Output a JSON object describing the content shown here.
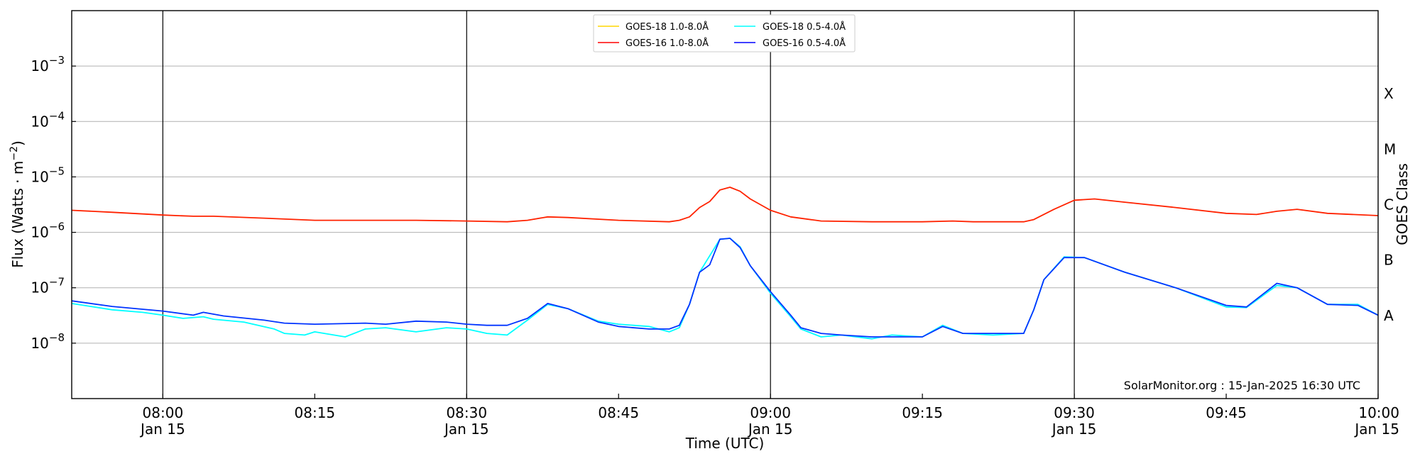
{
  "chart_data": {
    "type": "line",
    "xlabel": "Time (UTC)",
    "ylabel_main": "Flux (Watts · m",
    "ylabel_sup": "−2",
    "ylabel_close": ")",
    "y2label": "GOES Class",
    "y_scale": "log",
    "ylim": [
      1e-09,
      0.01
    ],
    "xlim": [
      "07:51",
      "10:00"
    ],
    "x_ticks": [
      {
        "t": "08:00",
        "line1": "08:00",
        "line2": "Jan 15"
      },
      {
        "t": "08:15",
        "line1": "08:15",
        "line2": ""
      },
      {
        "t": "08:30",
        "line1": "08:30",
        "line2": "Jan 15"
      },
      {
        "t": "08:45",
        "line1": "08:45",
        "line2": ""
      },
      {
        "t": "09:00",
        "line1": "09:00",
        "line2": "Jan 15"
      },
      {
        "t": "09:15",
        "line1": "09:15",
        "line2": ""
      },
      {
        "t": "09:30",
        "line1": "09:30",
        "line2": "Jan 15"
      },
      {
        "t": "09:45",
        "line1": "09:45",
        "line2": ""
      },
      {
        "t": "10:00",
        "line1": "10:00",
        "line2": "Jan 15"
      }
    ],
    "y_ticks": [
      {
        "v": 0.001,
        "base": "10",
        "exp": "−3"
      },
      {
        "v": 0.0001,
        "base": "10",
        "exp": "−4"
      },
      {
        "v": 1e-05,
        "base": "10",
        "exp": "−5"
      },
      {
        "v": 1e-06,
        "base": "10",
        "exp": "−6"
      },
      {
        "v": 1e-07,
        "base": "10",
        "exp": "−7"
      },
      {
        "v": 1e-08,
        "base": "10",
        "exp": "−8"
      }
    ],
    "goes_classes": [
      {
        "label": "X",
        "v": 0.0001
      },
      {
        "label": "M",
        "v": 1e-05
      },
      {
        "label": "C",
        "v": 1e-06
      },
      {
        "label": "B",
        "v": 1e-07
      },
      {
        "label": "A",
        "v": 1e-08
      }
    ],
    "vertical_lines": [
      "08:00",
      "08:30",
      "09:00",
      "09:30"
    ],
    "grid": "horizontal",
    "legend_position": "top-center",
    "legend": [
      {
        "name": "GOES-18 1.0-8.0Å",
        "color": "#ffd700"
      },
      {
        "name": "GOES-18 0.5-4.0Å",
        "color": "#00ffff"
      },
      {
        "name": "GOES-16 1.0-8.0Å",
        "color": "#ff0000"
      },
      {
        "name": "GOES-16 0.5-4.0Å",
        "color": "#0000ff"
      }
    ],
    "annotation": "SolarMonitor.org : 15-Jan-2025 16:30 UTC",
    "series": [
      {
        "name": "GOES-16 1.0-8.0Å",
        "color": "#ff2200",
        "points": [
          [
            "07:51",
            2.5e-06
          ],
          [
            "07:55",
            2.3e-06
          ],
          [
            "08:00",
            2.05e-06
          ],
          [
            "08:03",
            1.95e-06
          ],
          [
            "08:05",
            1.95e-06
          ],
          [
            "08:10",
            1.8e-06
          ],
          [
            "08:15",
            1.65e-06
          ],
          [
            "08:20",
            1.65e-06
          ],
          [
            "08:25",
            1.65e-06
          ],
          [
            "08:30",
            1.6e-06
          ],
          [
            "08:34",
            1.55e-06
          ],
          [
            "08:36",
            1.65e-06
          ],
          [
            "08:38",
            1.9e-06
          ],
          [
            "08:40",
            1.85e-06
          ],
          [
            "08:45",
            1.65e-06
          ],
          [
            "08:50",
            1.55e-06
          ],
          [
            "08:51",
            1.65e-06
          ],
          [
            "08:52",
            1.9e-06
          ],
          [
            "08:53",
            2.8e-06
          ],
          [
            "08:54",
            3.6e-06
          ],
          [
            "08:55",
            5.8e-06
          ],
          [
            "08:56",
            6.5e-06
          ],
          [
            "08:57",
            5.5e-06
          ],
          [
            "08:58",
            4e-06
          ],
          [
            "09:00",
            2.5e-06
          ],
          [
            "09:02",
            1.9e-06
          ],
          [
            "09:05",
            1.6e-06
          ],
          [
            "09:10",
            1.55e-06
          ],
          [
            "09:15",
            1.55e-06
          ],
          [
            "09:18",
            1.6e-06
          ],
          [
            "09:20",
            1.55e-06
          ],
          [
            "09:25",
            1.55e-06
          ],
          [
            "09:26",
            1.7e-06
          ],
          [
            "09:28",
            2.6e-06
          ],
          [
            "09:30",
            3.8e-06
          ],
          [
            "09:32",
            4e-06
          ],
          [
            "09:35",
            3.5e-06
          ],
          [
            "09:40",
            2.8e-06
          ],
          [
            "09:45",
            2.2e-06
          ],
          [
            "09:48",
            2.1e-06
          ],
          [
            "09:50",
            2.4e-06
          ],
          [
            "09:52",
            2.6e-06
          ],
          [
            "09:55",
            2.2e-06
          ],
          [
            "10:00",
            2e-06
          ]
        ]
      },
      {
        "name": "GOES-18 0.5-4.0Å",
        "color": "#00ffff",
        "points": [
          [
            "07:51",
            5.2e-08
          ],
          [
            "07:55",
            4e-08
          ],
          [
            "07:58",
            3.6e-08
          ],
          [
            "08:00",
            3.2e-08
          ],
          [
            "08:02",
            2.8e-08
          ],
          [
            "08:04",
            3e-08
          ],
          [
            "08:05",
            2.7e-08
          ],
          [
            "08:08",
            2.4e-08
          ],
          [
            "08:11",
            1.8e-08
          ],
          [
            "08:12",
            1.5e-08
          ],
          [
            "08:14",
            1.4e-08
          ],
          [
            "08:15",
            1.6e-08
          ],
          [
            "08:18",
            1.3e-08
          ],
          [
            "08:20",
            1.8e-08
          ],
          [
            "08:22",
            1.9e-08
          ],
          [
            "08:25",
            1.6e-08
          ],
          [
            "08:28",
            1.9e-08
          ],
          [
            "08:30",
            1.8e-08
          ],
          [
            "08:32",
            1.5e-08
          ],
          [
            "08:34",
            1.4e-08
          ],
          [
            "08:36",
            2.6e-08
          ],
          [
            "08:38",
            5e-08
          ],
          [
            "08:40",
            4.2e-08
          ],
          [
            "08:43",
            2.5e-08
          ],
          [
            "08:45",
            2.2e-08
          ],
          [
            "08:48",
            2e-08
          ],
          [
            "08:50",
            1.6e-08
          ],
          [
            "08:51",
            1.9e-08
          ],
          [
            "08:52",
            5e-08
          ],
          [
            "08:53",
            1.9e-07
          ],
          [
            "08:55",
            7.5e-07
          ],
          [
            "08:56",
            7.8e-07
          ],
          [
            "08:57",
            5.5e-07
          ],
          [
            "08:58",
            2.5e-07
          ],
          [
            "09:00",
            8e-08
          ],
          [
            "09:02",
            3e-08
          ],
          [
            "09:03",
            1.8e-08
          ],
          [
            "09:05",
            1.3e-08
          ],
          [
            "09:07",
            1.4e-08
          ],
          [
            "09:10",
            1.2e-08
          ],
          [
            "09:12",
            1.4e-08
          ],
          [
            "09:15",
            1.3e-08
          ],
          [
            "09:17",
            2.1e-08
          ],
          [
            "09:19",
            1.5e-08
          ],
          [
            "09:22",
            1.4e-08
          ],
          [
            "09:25",
            1.5e-08
          ],
          [
            "09:26",
            4e-08
          ],
          [
            "09:27",
            1.4e-07
          ],
          [
            "09:29",
            3.6e-07
          ],
          [
            "09:31",
            3.5e-07
          ],
          [
            "09:35",
            1.9e-07
          ],
          [
            "09:40",
            1e-07
          ],
          [
            "09:45",
            4.5e-08
          ],
          [
            "09:47",
            4.4e-08
          ],
          [
            "09:50",
            1.1e-07
          ],
          [
            "09:52",
            1e-07
          ],
          [
            "09:55",
            5e-08
          ],
          [
            "09:58",
            5e-08
          ],
          [
            "10:00",
            3.2e-08
          ]
        ]
      },
      {
        "name": "GOES-16 0.5-4.0Å",
        "color": "#0033ff",
        "points": [
          [
            "07:51",
            5.8e-08
          ],
          [
            "07:55",
            4.6e-08
          ],
          [
            "08:00",
            3.8e-08
          ],
          [
            "08:03",
            3.2e-08
          ],
          [
            "08:04",
            3.6e-08
          ],
          [
            "08:06",
            3.1e-08
          ],
          [
            "08:10",
            2.6e-08
          ],
          [
            "08:12",
            2.3e-08
          ],
          [
            "08:15",
            2.2e-08
          ],
          [
            "08:20",
            2.3e-08
          ],
          [
            "08:22",
            2.2e-08
          ],
          [
            "08:25",
            2.5e-08
          ],
          [
            "08:28",
            2.4e-08
          ],
          [
            "08:30",
            2.2e-08
          ],
          [
            "08:32",
            2.1e-08
          ],
          [
            "08:34",
            2.1e-08
          ],
          [
            "08:36",
            2.8e-08
          ],
          [
            "08:38",
            5.2e-08
          ],
          [
            "08:40",
            4.2e-08
          ],
          [
            "08:43",
            2.4e-08
          ],
          [
            "08:45",
            2e-08
          ],
          [
            "08:48",
            1.8e-08
          ],
          [
            "08:50",
            1.8e-08
          ],
          [
            "08:51",
            2.1e-08
          ],
          [
            "08:52",
            5e-08
          ],
          [
            "08:53",
            1.9e-07
          ],
          [
            "08:54",
            2.6e-07
          ],
          [
            "08:55",
            7.5e-07
          ],
          [
            "08:56",
            7.8e-07
          ],
          [
            "08:57",
            5.3e-07
          ],
          [
            "08:58",
            2.5e-07
          ],
          [
            "09:00",
            8.5e-08
          ],
          [
            "09:02",
            3.2e-08
          ],
          [
            "09:03",
            1.9e-08
          ],
          [
            "09:05",
            1.5e-08
          ],
          [
            "09:07",
            1.4e-08
          ],
          [
            "09:10",
            1.3e-08
          ],
          [
            "09:15",
            1.3e-08
          ],
          [
            "09:17",
            2e-08
          ],
          [
            "09:19",
            1.5e-08
          ],
          [
            "09:22",
            1.5e-08
          ],
          [
            "09:25",
            1.5e-08
          ],
          [
            "09:26",
            4e-08
          ],
          [
            "09:27",
            1.4e-07
          ],
          [
            "09:29",
            3.5e-07
          ],
          [
            "09:31",
            3.5e-07
          ],
          [
            "09:35",
            1.9e-07
          ],
          [
            "09:40",
            1e-07
          ],
          [
            "09:45",
            4.8e-08
          ],
          [
            "09:47",
            4.5e-08
          ],
          [
            "09:50",
            1.2e-07
          ],
          [
            "09:52",
            1e-07
          ],
          [
            "09:55",
            5e-08
          ],
          [
            "09:58",
            4.8e-08
          ],
          [
            "10:00",
            3.2e-08
          ]
        ]
      }
    ]
  }
}
